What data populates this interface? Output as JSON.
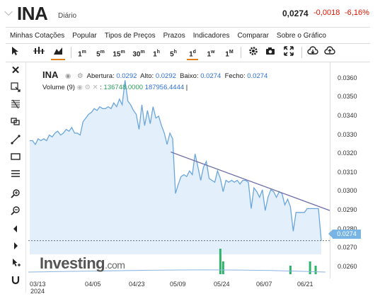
{
  "header": {
    "back_arrow": "⌵",
    "symbol": "INA",
    "period": "Diário",
    "price": "0,0274",
    "change": "-0,0018",
    "change_pct": "-6,16%",
    "change_color": "#d91400"
  },
  "menu": [
    "Minhas Cotações",
    "Popular",
    "Tipos de Preços",
    "Prazos",
    "Indicadores",
    "Comparar",
    "Sobre o Gráfico"
  ],
  "toolbar": {
    "timeframes": [
      {
        "base": "1",
        "sup": "m"
      },
      {
        "base": "5",
        "sup": "m"
      },
      {
        "base": "15",
        "sup": "m"
      },
      {
        "base": "30",
        "sup": "m"
      },
      {
        "base": "1",
        "sup": "h"
      },
      {
        "base": "5",
        "sup": "h"
      },
      {
        "base": "1",
        "sup": "d"
      },
      {
        "base": "1",
        "sup": "w"
      },
      {
        "base": "1",
        "sup": "M"
      }
    ],
    "selected_timeframe": "1d",
    "icons": [
      "cursor-icon",
      "candlestick-icon",
      "area-chart-icon",
      "gear-icon",
      "camera-icon",
      "fullscreen-icon",
      "cloud-download-icon",
      "cloud-upload-icon"
    ]
  },
  "sidebar_icons": [
    "close-icon",
    "crosshair-icon",
    "fibonacci-icon",
    "pattern-icon",
    "trendline-icon",
    "rectangle-icon",
    "lines-icon",
    "zoom-in-icon",
    "zoom-out-icon",
    "arrow-left-icon",
    "arrow-right-icon",
    "pointer-plus-icon",
    "magnet-icon"
  ],
  "legend": {
    "symbol": "INA",
    "open_label": "Abertura:",
    "open": "0.0292",
    "high_label": "Alto:",
    "high": "0.0292",
    "low_label": "Baixo:",
    "low": "0.0274",
    "close_label": "Fecho:",
    "close": "0.0274",
    "volume_label": "Volume (9)",
    "volume_value": "136748.0000",
    "volume_ma": "187956.4444"
  },
  "watermark": {
    "brand": "Investing",
    "suffix": ".com"
  },
  "chart_data": {
    "type": "area",
    "title": "",
    "xlabel": "",
    "ylabel": "",
    "ylim": [
      0.0254,
      0.0367
    ],
    "y_ticks": [
      "0.0360",
      "0.0350",
      "0.0340",
      "0.0330",
      "0.0320",
      "0.0310",
      "0.0300",
      "0.0290",
      "0.0280",
      "0.0270",
      "0.0260"
    ],
    "x_ticks": [
      "03/13",
      "04/05",
      "04/23",
      "05/09",
      "05/24",
      "06/07",
      "06/21"
    ],
    "x_year": "2024",
    "last_value_label": "0.0274",
    "line_color": "#6aa6dc",
    "fill_color": "#e3f0fb",
    "trendline_color": "#6f6fa8",
    "series": [
      {
        "values": [
          0.0327,
          0.0327,
          0.0325,
          0.0328,
          0.0327,
          0.0328,
          0.0327,
          0.033,
          0.0329,
          0.0331,
          0.0332,
          0.033,
          0.0331,
          0.0333,
          0.0332,
          0.0334,
          0.0331,
          0.0331,
          0.033,
          0.0337,
          0.0339,
          0.0341,
          0.0342,
          0.0344,
          0.0343,
          0.0345,
          0.0344,
          0.0344,
          0.0345,
          0.0344,
          0.0347,
          0.0345,
          0.0349,
          0.0346,
          0.0359,
          0.0348,
          0.0346,
          0.0343,
          0.0341,
          0.0333,
          0.0346,
          0.0335,
          0.0343,
          0.0336,
          0.0345,
          0.0339,
          0.034,
          0.0335,
          0.0331,
          0.0325,
          0.0331,
          0.0328,
          0.0299,
          0.0304,
          0.0308,
          0.0309,
          0.0308,
          0.0311,
          0.0309,
          0.032,
          0.0313,
          0.0306,
          0.0313,
          0.0316,
          0.0307,
          0.0306,
          0.0305,
          0.0311,
          0.0307,
          0.03,
          0.0306,
          0.0305,
          0.0306,
          0.0305,
          0.0306,
          0.0304,
          0.0306,
          0.0306,
          0.0305,
          0.0291,
          0.0302,
          0.03,
          0.0297,
          0.0301,
          0.029,
          0.0297,
          0.0301,
          0.03,
          0.0297,
          0.03,
          0.0299,
          0.0293,
          0.0296,
          0.0292,
          0.0279,
          0.0289,
          0.0289,
          0.0289,
          0.0289,
          0.0291,
          0.0291,
          0.0291,
          0.0291,
          0.0291,
          0.0274
        ]
      }
    ],
    "volume": [
      {
        "index": 68,
        "value": 0.9
      },
      {
        "index": 69,
        "value": 0.45
      },
      {
        "index": 93,
        "value": 0.3
      },
      {
        "index": 100,
        "value": 0.45
      },
      {
        "index": 102,
        "value": 0.3
      }
    ],
    "trendline": {
      "start_index": 75,
      "start_value": 0.0321,
      "end_index": 153,
      "end_value": 0.029
    },
    "grid": false
  }
}
